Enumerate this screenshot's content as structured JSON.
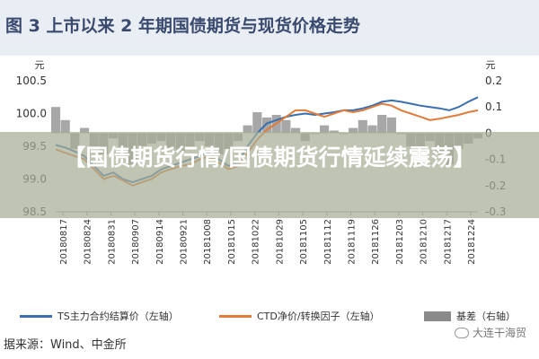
{
  "figure_title": "图 3   上市以来 2 年期国债期货与现货价格走势",
  "overlay_title": "【国债期货行情/国债期货行情延续震荡】",
  "source_text": "据来源：Wind、中金所",
  "watermark_text": "大连干海贸",
  "colors": {
    "ts": "#3a6fb0",
    "ctd": "#e07b39",
    "basis": "#8a8a8a",
    "title_bar": "#e9edf4",
    "title_text": "#3a4a6e"
  },
  "chart_data": {
    "type": "line",
    "left_axis": {
      "unit": "元",
      "ticks": [
        "100.5",
        "100.0",
        "99.5",
        "99.0",
        "98.5"
      ],
      "range": [
        98.5,
        100.5
      ]
    },
    "right_axis": {
      "unit": "元",
      "ticks": [
        "0.2",
        "0.1",
        "0",
        "-0.1",
        "-0.2",
        "-0.3"
      ],
      "range": [
        -0.3,
        0.2
      ]
    },
    "x_ticks": [
      "20180817",
      "20180824",
      "20180831",
      "20180907",
      "20180914",
      "20180921",
      "20181008",
      "20181015",
      "20181022",
      "20181029",
      "20181105",
      "20181112",
      "20181119",
      "20181126",
      "20181203",
      "20181210",
      "20181217",
      "20181224"
    ],
    "legend": [
      {
        "label": "TS主力合约结算价（左轴）",
        "kind": "line",
        "color": "#3a6fb0"
      },
      {
        "label": "CTD净价/转换因子（左轴）",
        "kind": "line",
        "color": "#e07b39"
      },
      {
        "label": "基差（右轴）",
        "kind": "area",
        "color": "#8a8a8a"
      }
    ],
    "series": [
      {
        "name": "TS主力合约结算价（左轴）",
        "axis": "left",
        "x": [
          0,
          2,
          4,
          6,
          8,
          10,
          12,
          14,
          16,
          18,
          20,
          22,
          24,
          26,
          28,
          30,
          32,
          34,
          36,
          38,
          40,
          42,
          44,
          46,
          48,
          50,
          52,
          54,
          56,
          58,
          60,
          62,
          64,
          66,
          68,
          70,
          72,
          74,
          76,
          78,
          80,
          82,
          84,
          86,
          88
        ],
        "values": [
          99.52,
          99.48,
          99.42,
          99.35,
          99.2,
          99.05,
          99.1,
          99.0,
          98.95,
          99.0,
          99.05,
          99.15,
          99.2,
          99.25,
          99.3,
          99.35,
          99.4,
          99.3,
          99.2,
          99.25,
          99.5,
          99.7,
          99.85,
          99.9,
          99.95,
          99.98,
          100.0,
          99.98,
          100.0,
          100.02,
          100.05,
          100.05,
          100.08,
          100.12,
          100.18,
          100.2,
          100.18,
          100.15,
          100.12,
          100.1,
          100.08,
          100.05,
          100.1,
          100.18,
          100.25
        ]
      },
      {
        "name": "CTD净价/转换因子（左轴）",
        "axis": "left",
        "x": [
          0,
          2,
          4,
          6,
          8,
          10,
          12,
          14,
          16,
          18,
          20,
          22,
          24,
          26,
          28,
          30,
          32,
          34,
          36,
          38,
          40,
          42,
          44,
          46,
          48,
          50,
          52,
          54,
          56,
          58,
          60,
          62,
          64,
          66,
          68,
          70,
          72,
          74,
          76,
          78,
          80,
          82,
          84,
          86,
          88
        ],
        "values": [
          99.45,
          99.4,
          99.35,
          99.3,
          99.15,
          99.0,
          99.05,
          98.98,
          98.9,
          98.95,
          99.0,
          99.1,
          99.15,
          99.2,
          99.22,
          99.3,
          99.35,
          99.25,
          99.15,
          99.2,
          99.4,
          99.6,
          99.75,
          99.85,
          99.95,
          100.05,
          100.05,
          100.0,
          99.95,
          100.0,
          100.05,
          100.02,
          100.05,
          100.1,
          100.15,
          100.12,
          100.05,
          100.0,
          99.95,
          99.9,
          99.92,
          99.95,
          99.98,
          100.02,
          100.05
        ]
      },
      {
        "name": "基差（右轴）",
        "axis": "right",
        "x": [
          0,
          2,
          4,
          6,
          8,
          10,
          12,
          14,
          16,
          18,
          20,
          22,
          24,
          26,
          28,
          30,
          32,
          34,
          36,
          38,
          40,
          42,
          44,
          46,
          48,
          50,
          52,
          54,
          56,
          58,
          60,
          62,
          64,
          66,
          68,
          70,
          72,
          74,
          76,
          78,
          80,
          82,
          84,
          86,
          88
        ],
        "values": [
          0.1,
          0.05,
          -0.06,
          0.02,
          -0.05,
          -0.08,
          -0.02,
          -0.06,
          -0.12,
          -0.05,
          -0.04,
          -0.03,
          -0.06,
          -0.07,
          -0.05,
          -0.03,
          -0.05,
          -0.08,
          -0.06,
          -0.03,
          0.03,
          0.08,
          0.06,
          0.07,
          0.05,
          0.02,
          -0.03,
          0.0,
          0.03,
          0.01,
          0.0,
          0.02,
          0.05,
          0.03,
          0.07,
          0.06,
          0.0,
          -0.05,
          -0.06,
          -0.03,
          -0.08,
          -0.12,
          -0.06,
          -0.04,
          -0.02
        ]
      }
    ]
  }
}
